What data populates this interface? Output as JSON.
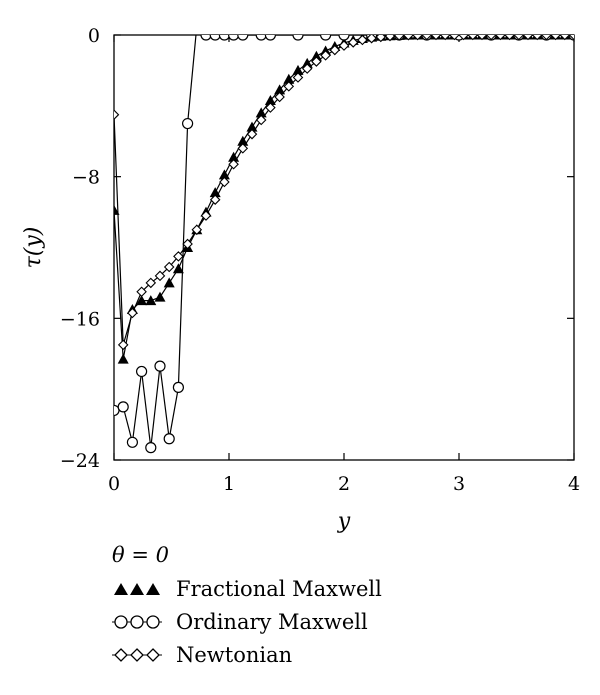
{
  "chart_data": {
    "type": "line",
    "title": "",
    "xlabel": "y",
    "ylabel": "τ(y)",
    "xlim": [
      0,
      4
    ],
    "ylim": [
      -24,
      0
    ],
    "xticks": [
      "0",
      "1",
      "2",
      "3",
      "4"
    ],
    "yticks": [
      "0",
      "-8",
      "-16",
      "-24"
    ],
    "grid": false,
    "legend_title": "θ = 0",
    "legend_position": "bottom-left",
    "series": [
      {
        "name": "Fractional Maxwell",
        "marker": "filled-triangle",
        "x": [
          0,
          0.08,
          0.16,
          0.24,
          0.32,
          0.4,
          0.48,
          0.56,
          0.64,
          0.72,
          0.8,
          0.88,
          0.96,
          1.04,
          1.12,
          1.2,
          1.28,
          1.36,
          1.44,
          1.52,
          1.6,
          1.68,
          1.76,
          1.84,
          1.92,
          2.0,
          2.08,
          2.16,
          2.24,
          2.32,
          2.4,
          2.48,
          2.56,
          2.64,
          2.72,
          2.8,
          2.88,
          2.96,
          3.04,
          3.12,
          3.2,
          3.28,
          3.36,
          3.44,
          3.52,
          3.6,
          3.68,
          3.76,
          3.84,
          3.92,
          4.0
        ],
        "y": [
          -9.9,
          -18.3,
          -15.5,
          -15.0,
          -15.0,
          -14.8,
          -14.0,
          -13.2,
          -12.0,
          -11.0,
          -10.0,
          -8.9,
          -7.9,
          -6.9,
          -6.0,
          -5.2,
          -4.4,
          -3.7,
          -3.1,
          -2.5,
          -2.0,
          -1.6,
          -1.2,
          -0.9,
          -0.65,
          -0.45,
          -0.3,
          -0.2,
          -0.12,
          -0.07,
          -0.04,
          -0.02,
          -0.01,
          0,
          0,
          0,
          0,
          0,
          0,
          0,
          0,
          0,
          0,
          0,
          0,
          0,
          0,
          0,
          0,
          0,
          0
        ]
      },
      {
        "name": "Ordinary Maxwell",
        "marker": "open-circle",
        "x": [
          0,
          0.08,
          0.16,
          0.24,
          0.32,
          0.4,
          0.48,
          0.56,
          0.64,
          0.72,
          0.8,
          0.88,
          0.96,
          1.04,
          1.12,
          1.28,
          1.36,
          1.6,
          1.84,
          2.0,
          2.24,
          2.48,
          2.72,
          3.0,
          3.28,
          3.52,
          3.76,
          4.0
        ],
        "y": [
          -21.2,
          -21.0,
          -23.0,
          -19.0,
          -23.3,
          -18.7,
          -22.8,
          -19.9,
          -5.0,
          0.5,
          0,
          0,
          0,
          0,
          0,
          0,
          0,
          0,
          0,
          0,
          0,
          0,
          0,
          0,
          0,
          0,
          0,
          0
        ]
      },
      {
        "name": "Newtonian",
        "marker": "open-diamond",
        "x": [
          0,
          0.08,
          0.16,
          0.24,
          0.32,
          0.4,
          0.48,
          0.56,
          0.64,
          0.72,
          0.8,
          0.88,
          0.96,
          1.04,
          1.12,
          1.2,
          1.28,
          1.36,
          1.44,
          1.52,
          1.6,
          1.68,
          1.76,
          1.84,
          1.92,
          2.0,
          2.08,
          2.16,
          2.24,
          2.32,
          2.4,
          2.48,
          2.56,
          2.64,
          2.72,
          2.8,
          2.88,
          2.96,
          3.04,
          3.12,
          3.2,
          3.28,
          3.36,
          3.44,
          3.52,
          3.6,
          3.68,
          3.76,
          3.84,
          3.92,
          4.0
        ],
        "y": [
          -4.5,
          -17.5,
          -15.7,
          -14.5,
          -14.0,
          -13.6,
          -13.1,
          -12.5,
          -11.8,
          -11.0,
          -10.2,
          -9.3,
          -8.3,
          -7.3,
          -6.4,
          -5.6,
          -4.8,
          -4.1,
          -3.5,
          -2.9,
          -2.4,
          -1.9,
          -1.5,
          -1.15,
          -0.85,
          -0.6,
          -0.42,
          -0.28,
          -0.18,
          -0.11,
          -0.06,
          -0.03,
          -0.015,
          -0.005,
          0,
          0,
          0,
          0,
          0,
          0,
          0,
          0,
          0,
          0,
          0,
          0,
          0,
          0,
          0,
          0,
          0
        ]
      }
    ]
  }
}
